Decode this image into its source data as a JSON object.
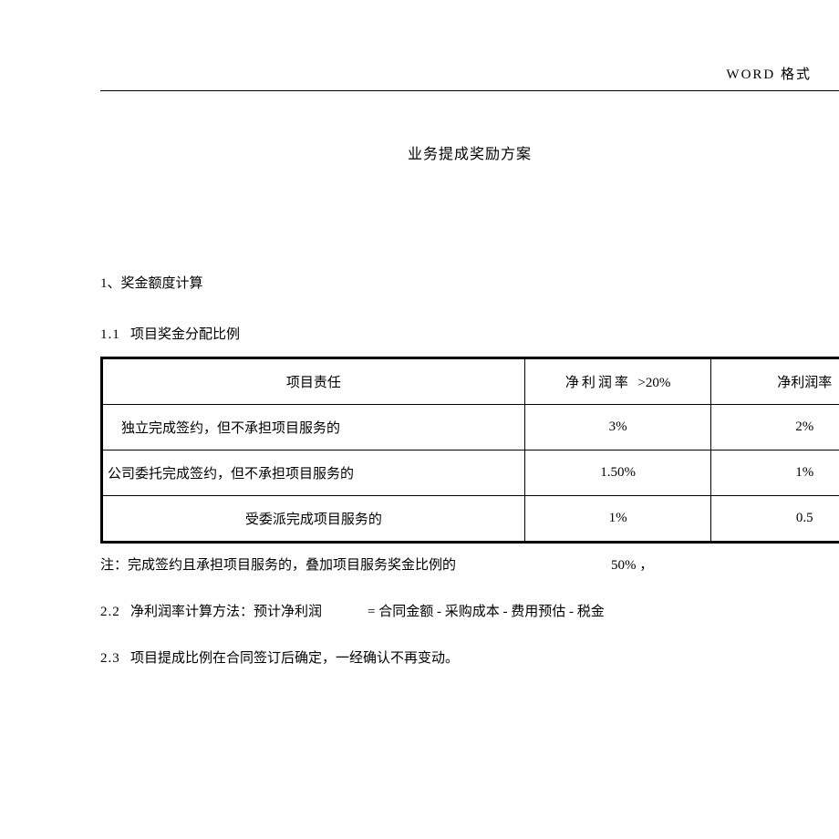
{
  "header": {
    "format_label": "WORD  格式"
  },
  "title": "业务提成奖励方案",
  "sections": {
    "s1": "1、奖金额度计算",
    "s1_1_num": "1.1",
    "s1_1_text": "项目奖金分配比例",
    "note_prefix": "注：完成签约且承担项目服务的，叠加项目服务奖金比例的",
    "note_pct": "50% ，",
    "s2_2_num": "2.2",
    "s2_2_text": "净利润率计算方法：预计净利润",
    "s2_2_formula": "= 合同金额  - 采购成本  - 费用预估  - 税金",
    "s2_3_num": "2.3",
    "s2_3_text": "项目提成比例在合同签订后确定，一经确认不再变动。"
  },
  "table": {
    "header": {
      "c1": "项目责任",
      "c2_a": "净利润率",
      "c2_b": ">20%",
      "c3": "净利润率"
    },
    "rows": [
      {
        "c1": "独立完成签约，但不承担项目服务的",
        "c2": "3%",
        "c3": "2%"
      },
      {
        "c1": "公司委托完成签约，但不承担项目服务的",
        "c2": "1.50%",
        "c3": "1%"
      },
      {
        "c1": "受委派完成项目服务的",
        "c2": "1%",
        "c3": "0.5"
      }
    ]
  },
  "style": {
    "text_color": "#000000",
    "background": "#ffffff",
    "border_color": "#000000"
  }
}
